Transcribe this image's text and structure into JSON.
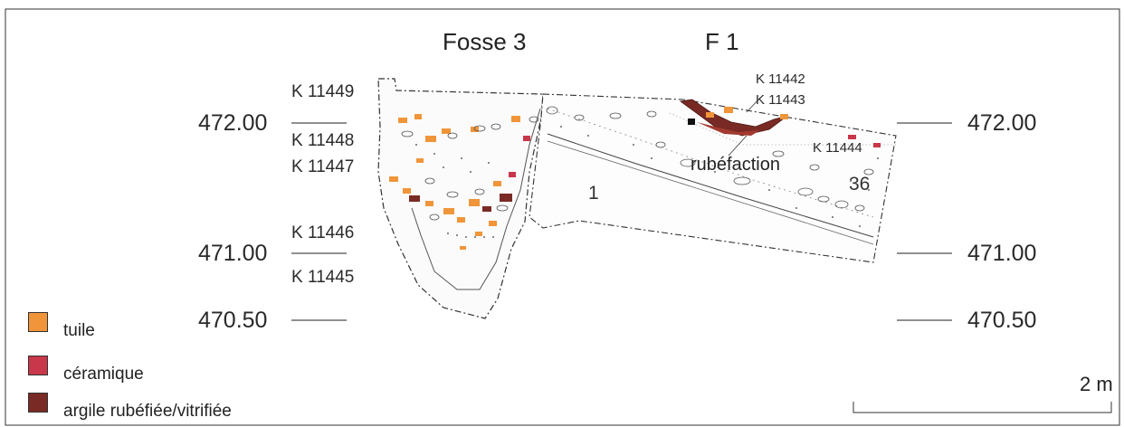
{
  "titles": {
    "left": "Fosse 3",
    "right": "F 1"
  },
  "elevations_left": [
    "472.00",
    "471.00",
    "470.50"
  ],
  "elevations_right": [
    "472.00",
    "471.00",
    "470.50"
  ],
  "sample_codes_left": [
    "K 11449",
    "K 11448",
    "K 11447",
    "K 11446",
    "K 11445"
  ],
  "sample_codes_right": [
    "K 11442",
    "K 11443",
    "K 11444"
  ],
  "annotations": {
    "rubefaction": "rubéfaction",
    "layer_1": "1",
    "layer_36": "36"
  },
  "scale": {
    "label": "2 m"
  },
  "legend": [
    {
      "label": "tuile",
      "color": "#f0953a"
    },
    {
      "label": "céramique",
      "color": "#c8374a"
    },
    {
      "label": "argile rubéfiée/vitrifiée",
      "color": "#7a2a24"
    }
  ]
}
